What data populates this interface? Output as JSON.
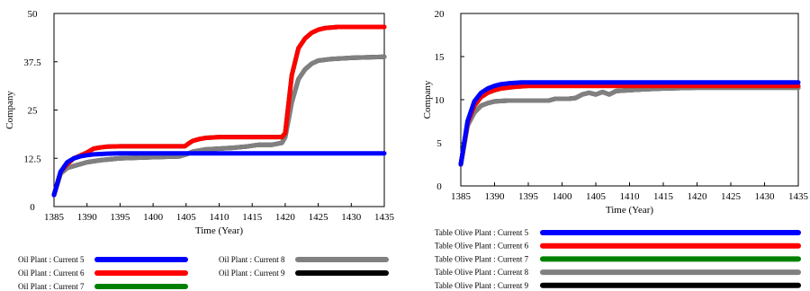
{
  "chart_data": [
    {
      "type": "line",
      "xlabel": "Time (Year)",
      "ylabel": "Company",
      "xlim": [
        1385,
        1435
      ],
      "ylim": [
        0,
        50
      ],
      "x_ticks": [
        1385,
        1390,
        1395,
        1400,
        1405,
        1410,
        1415,
        1420,
        1425,
        1430,
        1435
      ],
      "y_ticks": [
        0,
        12.5,
        25,
        37.5,
        50
      ],
      "y_tick_labels": [
        "0",
        "12.5",
        "25",
        "37.5",
        "50"
      ],
      "legend_layout": "two-column",
      "series": [
        {
          "name": "Oil Plant : Current 5",
          "marker": "1",
          "color": "#0000ff",
          "x": [
            1385,
            1386,
            1387,
            1388,
            1389,
            1390,
            1391,
            1392,
            1393,
            1395,
            1400,
            1405,
            1410,
            1415,
            1420,
            1425,
            1430,
            1435
          ],
          "y": [
            3,
            9,
            11.5,
            12.5,
            13,
            13.3,
            13.5,
            13.6,
            13.7,
            13.8,
            13.8,
            13.8,
            13.8,
            13.8,
            13.8,
            13.8,
            13.8,
            13.8
          ]
        },
        {
          "name": "Oil Plant : Current 6",
          "marker": "2",
          "color": "#ff0000",
          "x": [
            1385,
            1386,
            1387,
            1388,
            1389,
            1390,
            1391,
            1392,
            1393,
            1395,
            1400,
            1404.8,
            1405.5,
            1406,
            1407,
            1408,
            1410,
            1415,
            1419.5,
            1420,
            1421,
            1422,
            1423,
            1424,
            1425,
            1426,
            1428,
            1430,
            1435
          ],
          "y": [
            3,
            9,
            11,
            12.5,
            13.2,
            14,
            15,
            15.3,
            15.5,
            15.6,
            15.6,
            15.6,
            16.5,
            17,
            17.5,
            17.8,
            18,
            18,
            18,
            19,
            34,
            41,
            43.5,
            45,
            45.8,
            46.2,
            46.5,
            46.5,
            46.5
          ]
        },
        {
          "name": "Oil Plant : Current 7",
          "marker": "3",
          "color": "#008000",
          "x": [
            1385,
            1386,
            1387,
            1388,
            1389,
            1390,
            1391,
            1392,
            1393,
            1395,
            1400,
            1404.8,
            1405.5,
            1406,
            1407,
            1408,
            1410,
            1415,
            1419.5,
            1420,
            1421,
            1422,
            1423,
            1424,
            1425,
            1426,
            1428,
            1430,
            1435
          ],
          "y": [
            3,
            9,
            11,
            12.5,
            13.2,
            14,
            15,
            15.3,
            15.5,
            15.6,
            15.6,
            15.6,
            16.5,
            17,
            17.5,
            17.8,
            18,
            18,
            18,
            19,
            34,
            41,
            43.5,
            45,
            45.8,
            46.2,
            46.5,
            46.5,
            46.5
          ]
        },
        {
          "name": "Oil Plant : Current 8",
          "marker": "4",
          "color": "#808080",
          "x": [
            1385,
            1386,
            1387,
            1388,
            1390,
            1392,
            1395,
            1400,
            1404,
            1405,
            1406,
            1408,
            1410,
            1412,
            1414,
            1416,
            1418,
            1419.5,
            1420,
            1421,
            1422,
            1423,
            1424,
            1425,
            1427,
            1430,
            1435
          ],
          "y": [
            3,
            8.5,
            10,
            10.5,
            11.5,
            12,
            12.5,
            12.8,
            13,
            13.5,
            14.2,
            14.8,
            15,
            15.2,
            15.5,
            16,
            16,
            16.5,
            18,
            27,
            33,
            35.5,
            37,
            37.8,
            38.2,
            38.5,
            38.8
          ]
        },
        {
          "name": "Oil Plant : Current 9",
          "marker": "5",
          "color": "#000000",
          "x": [
            1385,
            1386,
            1387,
            1388,
            1390,
            1392,
            1395,
            1400,
            1404,
            1405,
            1406,
            1408,
            1410,
            1412,
            1414,
            1416,
            1418,
            1419.5,
            1420,
            1421,
            1422,
            1423,
            1424,
            1425,
            1427,
            1430,
            1435
          ],
          "y": [
            3,
            8.5,
            10,
            10.5,
            11.5,
            12,
            12.5,
            12.8,
            13,
            13.5,
            14.2,
            14.8,
            15,
            15.2,
            15.5,
            16,
            16,
            16.5,
            18,
            27,
            33,
            35.5,
            37,
            37.8,
            38.2,
            38.5,
            38.8
          ]
        }
      ]
    },
    {
      "type": "line",
      "xlabel": "Time (Year)",
      "ylabel": "Company",
      "xlim": [
        1385,
        1435
      ],
      "ylim": [
        0,
        20
      ],
      "x_ticks": [
        1385,
        1390,
        1395,
        1400,
        1405,
        1410,
        1415,
        1420,
        1425,
        1430,
        1435
      ],
      "y_ticks": [
        0,
        5,
        10,
        15,
        20
      ],
      "y_tick_labels": [
        "0",
        "5",
        "10",
        "15",
        "20"
      ],
      "legend_layout": "one-column",
      "series": [
        {
          "name": "Table Olive Plant : Current 5",
          "marker": "1",
          "color": "#0000ff",
          "x": [
            1385,
            1386,
            1387,
            1388,
            1389,
            1390,
            1391,
            1392,
            1394,
            1397,
            1400,
            1405,
            1410,
            1415,
            1420,
            1425,
            1430,
            1435
          ],
          "y": [
            2.5,
            7.5,
            9.8,
            10.8,
            11.3,
            11.6,
            11.8,
            11.9,
            12,
            12,
            12,
            12,
            12,
            12,
            12,
            12,
            12,
            12
          ]
        },
        {
          "name": "Table Olive Plant : Current 6",
          "marker": "2",
          "color": "#ff0000",
          "x": [
            1385,
            1386,
            1387,
            1388,
            1389,
            1390,
            1391,
            1393,
            1395,
            1398,
            1400,
            1405,
            1410,
            1415,
            1420,
            1425,
            1430,
            1435
          ],
          "y": [
            2.5,
            7.3,
            9.3,
            10.3,
            10.8,
            11.1,
            11.3,
            11.5,
            11.6,
            11.6,
            11.6,
            11.6,
            11.6,
            11.6,
            11.6,
            11.6,
            11.6,
            11.6
          ]
        },
        {
          "name": "Table Olive Plant : Current 7",
          "marker": "3",
          "color": "#008000",
          "x": [
            1385,
            1386,
            1387,
            1388,
            1389,
            1390,
            1391,
            1393,
            1395,
            1398,
            1400,
            1405,
            1410,
            1415,
            1420,
            1425,
            1430,
            1435
          ],
          "y": [
            2.5,
            7.3,
            9.3,
            10.3,
            10.8,
            11.1,
            11.3,
            11.5,
            11.6,
            11.6,
            11.6,
            11.6,
            11.6,
            11.6,
            11.6,
            11.6,
            11.6,
            11.6
          ]
        },
        {
          "name": "Table Olive Plant : Current 8",
          "marker": "4",
          "color": "#808080",
          "x": [
            1385,
            1386,
            1387,
            1388,
            1389,
            1390,
            1392,
            1395,
            1398,
            1399,
            1401,
            1402,
            1403,
            1404,
            1405,
            1406,
            1407,
            1408,
            1410,
            1412,
            1415,
            1420,
            1425,
            1430,
            1435
          ],
          "y": [
            2.5,
            7,
            8.5,
            9.3,
            9.6,
            9.8,
            9.9,
            9.9,
            9.9,
            10.1,
            10.1,
            10.2,
            10.6,
            10.8,
            10.6,
            10.9,
            10.6,
            11,
            11.1,
            11.2,
            11.3,
            11.4,
            11.4,
            11.4,
            11.4
          ]
        },
        {
          "name": "Table Olive Plant : Current 9",
          "marker": "5",
          "color": "#000000",
          "x": [
            1385,
            1386,
            1387,
            1388,
            1389,
            1390,
            1392,
            1395,
            1398,
            1399,
            1401,
            1402,
            1403,
            1404,
            1405,
            1406,
            1407,
            1408,
            1410,
            1412,
            1415,
            1420,
            1425,
            1430,
            1435
          ],
          "y": [
            2.5,
            7,
            8.5,
            9.3,
            9.6,
            9.8,
            9.9,
            9.9,
            9.9,
            10.1,
            10.1,
            10.2,
            10.6,
            10.8,
            10.6,
            10.9,
            10.6,
            11,
            11.1,
            11.2,
            11.3,
            11.4,
            11.4,
            11.4,
            11.4
          ]
        }
      ]
    }
  ]
}
